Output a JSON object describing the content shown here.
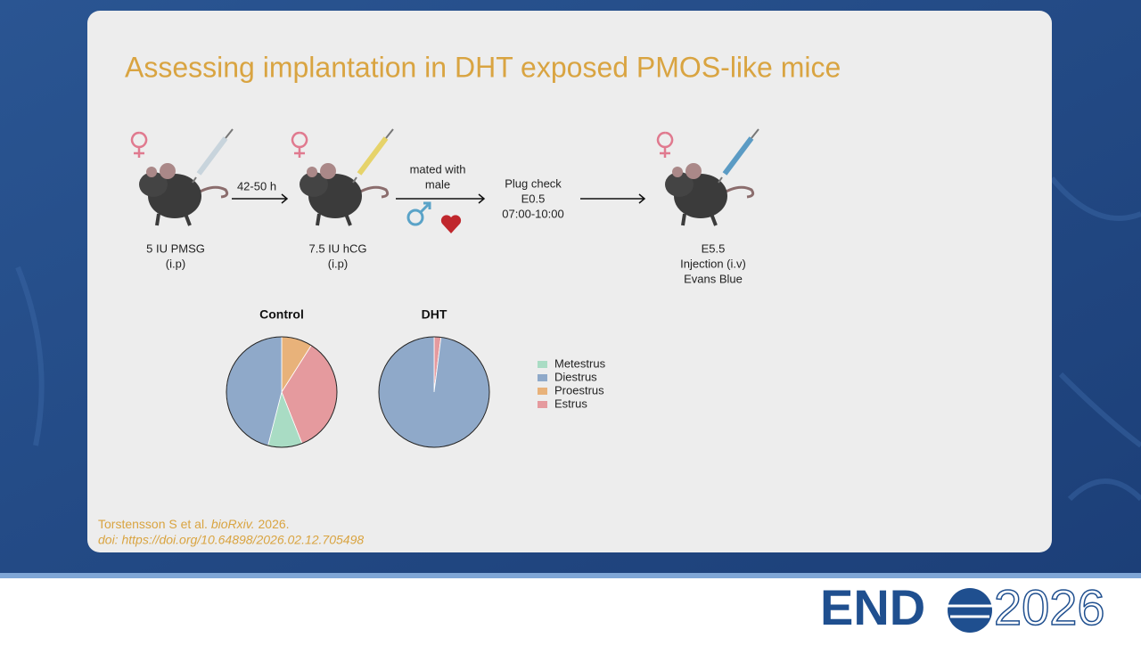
{
  "title": "Assessing implantation in DHT exposed PMOS-like mice",
  "diagram": {
    "steps": [
      [
        "5 IU PMSG",
        "(i.p)"
      ],
      [
        "7.5 IU hCG",
        "(i.p)"
      ],
      [
        "E5.5",
        "Injection (i.v)",
        "Evans Blue"
      ]
    ],
    "interval": "42-50 h",
    "mating": [
      "mated with",
      "male"
    ],
    "plug_check": [
      "Plug check",
      "E0.5",
      "07:00-10:00"
    ]
  },
  "chart_data": [
    {
      "type": "pie",
      "title": "Control",
      "categories": [
        "Metestrus",
        "Diestrus",
        "Proestrus",
        "Estrus"
      ],
      "values": [
        10,
        46,
        9,
        35
      ],
      "colors": [
        "#a9dcc4",
        "#8fa9c9",
        "#e8b27a",
        "#e59a9e"
      ]
    },
    {
      "type": "pie",
      "title": "DHT",
      "categories": [
        "Metestrus",
        "Diestrus",
        "Proestrus",
        "Estrus"
      ],
      "values": [
        0,
        98,
        0,
        2
      ],
      "colors": [
        "#a9dcc4",
        "#8fa9c9",
        "#e8b27a",
        "#e59a9e"
      ]
    }
  ],
  "citation": {
    "authors": "Torstensson S et al.",
    "journal": "bioRxiv.",
    "year": "2026.",
    "doi": "doi: https://doi.org/10.64898/2026.02.12.705498"
  },
  "logo": {
    "left": "END",
    "right": "2026"
  }
}
